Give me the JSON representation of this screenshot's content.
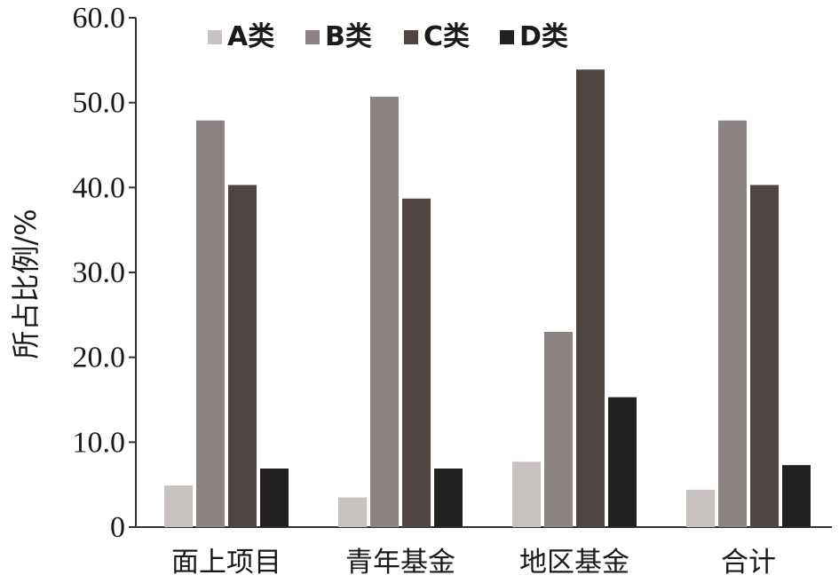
{
  "chart_data": {
    "type": "bar",
    "categories": [
      "面上项目",
      "青年基金",
      "地区基金",
      "合计"
    ],
    "series": [
      {
        "name": "A类",
        "color": "#c8c3c1",
        "values": [
          4.9,
          3.5,
          7.7,
          4.4
        ]
      },
      {
        "name": "B类",
        "color": "#8c8482",
        "values": [
          47.9,
          50.7,
          23.0,
          47.9
        ]
      },
      {
        "name": "C类",
        "color": "#4f4643",
        "values": [
          40.3,
          38.7,
          53.9,
          40.3
        ]
      },
      {
        "name": "D类",
        "color": "#22201e",
        "values": [
          6.9,
          6.9,
          15.3,
          7.3
        ]
      }
    ],
    "title": "",
    "xlabel": "",
    "ylabel": "所占比例/%",
    "ylim": [
      0,
      60
    ],
    "yticks": [
      "0",
      "10.0",
      "20.0",
      "30.0",
      "40.0",
      "50.0",
      "60.0"
    ],
    "grid": false,
    "legend_position": "top"
  }
}
